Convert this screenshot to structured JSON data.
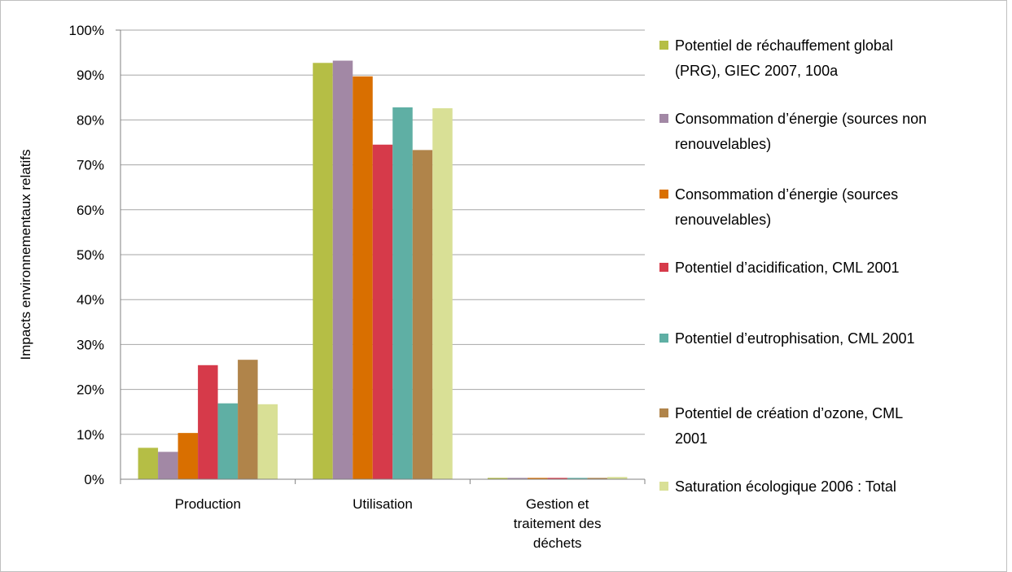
{
  "chart_data": {
    "type": "bar",
    "ylabel": "Impacts environnementaux relatifs",
    "ylim": [
      0,
      100
    ],
    "yticks": [
      "0%",
      "10%",
      "20%",
      "30%",
      "40%",
      "50%",
      "60%",
      "70%",
      "80%",
      "90%",
      "100%"
    ],
    "categories": [
      "Production",
      "Utilisation",
      "Gestion et traitement des déchets"
    ],
    "category_lines": [
      [
        "Production"
      ],
      [
        "Utilisation"
      ],
      [
        "Gestion et",
        "traitement des",
        "déchets"
      ]
    ],
    "grid": true,
    "legend_position": "right",
    "series": [
      {
        "name": "Potentiel de réchauffement global (PRG), GIEC 2007, 100a",
        "legend_lines": [
          "Potentiel de réchauffement global",
          "(PRG), GIEC 2007, 100a"
        ],
        "color": "#b5be45",
        "values": [
          7.0,
          92.7,
          0.3
        ]
      },
      {
        "name": "Consommation d’énergie (sources non renouvelables)",
        "legend_lines": [
          "Consommation d’énergie (sources non",
          "renouvelables)"
        ],
        "color": "#a288a5",
        "values": [
          6.1,
          93.2,
          0.3
        ]
      },
      {
        "name": "Consommation d’énergie (sources renouvelables)",
        "legend_lines": [
          "Consommation d’énergie (sources",
          "renouvelables)"
        ],
        "color": "#d96f00",
        "values": [
          10.3,
          89.7,
          0.3
        ]
      },
      {
        "name": "Potentiel d’acidification, CML 2001",
        "legend_lines": [
          "Potentiel d’acidification, CML 2001"
        ],
        "color": "#d63a4a",
        "values": [
          25.4,
          74.5,
          0.3
        ]
      },
      {
        "name": "Potentiel d’eutrophisation, CML 2001",
        "legend_lines": [
          "Potentiel d’eutrophisation, CML 2001"
        ],
        "color": "#5fafa4",
        "values": [
          16.9,
          82.8,
          0.3
        ]
      },
      {
        "name": "Potentiel de création d’ozone, CML 2001",
        "legend_lines": [
          "Potentiel de création d’ozone, CML",
          "2001"
        ],
        "color": "#b0844a",
        "values": [
          26.6,
          73.3,
          0.3
        ]
      },
      {
        "name": "Saturation écologique 2006 : Total",
        "legend_lines": [
          "Saturation écologique 2006 : Total"
        ],
        "color": "#d9e096",
        "values": [
          16.7,
          82.6,
          0.5
        ]
      }
    ]
  }
}
